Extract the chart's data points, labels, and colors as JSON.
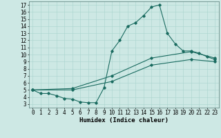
{
  "xlabel": "Humidex (Indice chaleur)",
  "bg_color": "#cde8e4",
  "line_color": "#1a6b60",
  "grid_color": "#a8d4ce",
  "xlim": [
    -0.5,
    23.5
  ],
  "ylim": [
    2.5,
    17.5
  ],
  "xticks": [
    0,
    1,
    2,
    3,
    4,
    5,
    6,
    7,
    8,
    9,
    10,
    11,
    12,
    13,
    14,
    15,
    16,
    17,
    18,
    19,
    20,
    21,
    22,
    23
  ],
  "yticks": [
    3,
    4,
    5,
    6,
    7,
    8,
    9,
    10,
    11,
    12,
    13,
    14,
    15,
    16,
    17
  ],
  "line1_x": [
    0,
    1,
    2,
    3,
    4,
    5,
    6,
    7,
    8,
    9,
    10,
    11,
    12,
    13,
    14,
    15,
    16,
    17,
    18,
    19,
    20,
    21,
    22,
    23
  ],
  "line1_y": [
    5.0,
    4.5,
    4.5,
    4.2,
    3.8,
    3.7,
    3.3,
    3.2,
    3.2,
    5.3,
    10.5,
    12.0,
    14.0,
    14.5,
    15.5,
    16.7,
    17.0,
    13.0,
    11.5,
    10.5,
    10.5,
    10.2,
    9.7,
    9.3
  ],
  "line2_x": [
    0,
    5,
    10,
    15,
    20,
    23
  ],
  "line2_y": [
    5.0,
    5.2,
    7.0,
    9.5,
    10.4,
    9.5
  ],
  "line3_x": [
    0,
    5,
    10,
    15,
    20,
    23
  ],
  "line3_y": [
    5.0,
    5.0,
    6.2,
    8.5,
    9.3,
    9.0
  ],
  "label_fontsize": 6.5,
  "tick_fontsize": 5.5
}
